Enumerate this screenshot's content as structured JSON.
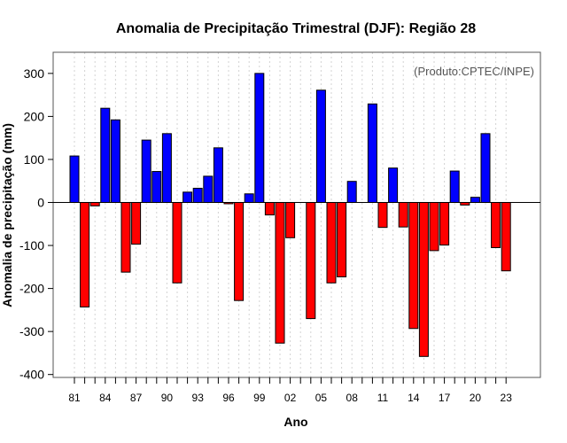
{
  "chart_data": {
    "type": "bar",
    "title": "Anomalia de Precipitação Trimestral (DJF): Região 28",
    "xlabel": "Ano",
    "ylabel": "Anomalia de precipitação (mm)",
    "credit": "(Produto:CPTEC/INPE)",
    "ylim": [
      -410,
      350
    ],
    "yticks": [
      -400,
      -300,
      -200,
      -100,
      0,
      100,
      200,
      300
    ],
    "ytick_labels": [
      "-400",
      "-300",
      "-200",
      "-100",
      "0",
      "100",
      "200",
      "300"
    ],
    "xtick_labels": [
      "81",
      "84",
      "87",
      "90",
      "93",
      "96",
      "99",
      "02",
      "05",
      "08",
      "11",
      "14",
      "17",
      "20",
      "23"
    ],
    "xtick_years": [
      1981,
      1984,
      1987,
      1990,
      1993,
      1996,
      1999,
      2002,
      2005,
      2008,
      2011,
      2014,
      2017,
      2020,
      2023
    ],
    "grid": true,
    "positive_color": "#0000ff",
    "negative_color": "#ff0000",
    "categories": [
      1981,
      1982,
      1983,
      1984,
      1985,
      1986,
      1987,
      1988,
      1989,
      1990,
      1991,
      1992,
      1993,
      1994,
      1995,
      1996,
      1997,
      1998,
      1999,
      2000,
      2001,
      2002,
      2003,
      2004,
      2005,
      2006,
      2007,
      2008,
      2009,
      2010,
      2011,
      2012,
      2013,
      2014,
      2015,
      2016,
      2017,
      2018,
      2019,
      2020,
      2021,
      2022,
      2023
    ],
    "values": [
      108,
      -243,
      -8,
      219,
      192,
      -162,
      -97,
      145,
      72,
      160,
      -187,
      24,
      33,
      61,
      127,
      -3,
      -228,
      20,
      300,
      -29,
      -327,
      -82,
      0,
      -270,
      261,
      -187,
      -173,
      49,
      0,
      229,
      -58,
      80,
      -57,
      -293,
      -358,
      -112,
      -99,
      73,
      -6,
      12,
      160,
      -105,
      -159
    ]
  }
}
